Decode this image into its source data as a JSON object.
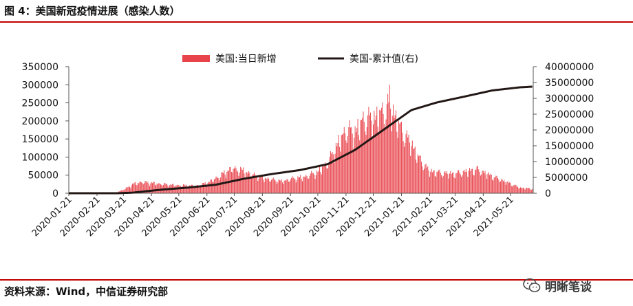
{
  "header": {
    "title": "图 4：美国新冠疫情进展（感染人数）"
  },
  "footer": {
    "source": "资料来源：Wind，中信证券研究部",
    "watermark": "明晰笔谈"
  },
  "colors": {
    "rule": "#c00000",
    "bar": "#e8434b",
    "line": "#231815"
  },
  "chart_data": {
    "type": "bar+line",
    "title": "",
    "legend_position": "top",
    "series": [
      {
        "name": "美国:当日新增",
        "type": "bar",
        "axis": "left"
      },
      {
        "name": "美国-累计值(右)",
        "type": "line",
        "axis": "right"
      }
    ],
    "x_ticks": [
      "2020-01-21",
      "2020-02-21",
      "2020-03-21",
      "2020-04-21",
      "2020-05-21",
      "2020-06-21",
      "2020-07-21",
      "2020-08-21",
      "2020-09-21",
      "2020-10-21",
      "2020-11-21",
      "2020-12-21",
      "2021-01-21",
      "2021-02-21",
      "2021-03-21",
      "2021-04-21",
      "2021-05-21"
    ],
    "x_range": [
      "2020-01-21",
      "2021-06-15"
    ],
    "y_left": {
      "min": 0,
      "max": 350000,
      "ticks": [
        "0",
        "50000",
        "100000",
        "150000",
        "200000",
        "250000",
        "300000",
        "350000"
      ]
    },
    "y_right": {
      "min": 0,
      "max": 40000000,
      "ticks": [
        "0",
        "5000000",
        "10000000",
        "15000000",
        "20000000",
        "25000000",
        "30000000",
        "35000000",
        "40000000"
      ]
    },
    "daily_new_keypoints": [
      [
        "2020-01-21",
        0
      ],
      [
        "2020-03-01",
        0
      ],
      [
        "2020-03-12",
        1500
      ],
      [
        "2020-03-21",
        10000
      ],
      [
        "2020-04-01",
        27000
      ],
      [
        "2020-04-10",
        33000
      ],
      [
        "2020-04-21",
        30000
      ],
      [
        "2020-05-10",
        25000
      ],
      [
        "2020-05-21",
        23000
      ],
      [
        "2020-06-10",
        22000
      ],
      [
        "2020-06-21",
        30000
      ],
      [
        "2020-07-05",
        50000
      ],
      [
        "2020-07-18",
        73000
      ],
      [
        "2020-07-28",
        68000
      ],
      [
        "2020-08-10",
        55000
      ],
      [
        "2020-08-21",
        45000
      ],
      [
        "2020-09-05",
        38000
      ],
      [
        "2020-09-12",
        35000
      ],
      [
        "2020-09-21",
        42000
      ],
      [
        "2020-10-05",
        47000
      ],
      [
        "2020-10-21",
        62000
      ],
      [
        "2020-11-01",
        90000
      ],
      [
        "2020-11-10",
        135000
      ],
      [
        "2020-11-21",
        185000
      ],
      [
        "2020-12-01",
        180000
      ],
      [
        "2020-12-10",
        215000
      ],
      [
        "2020-12-21",
        220000
      ],
      [
        "2021-01-02",
        240000
      ],
      [
        "2021-01-08",
        260000
      ],
      [
        "2021-01-15",
        220000
      ],
      [
        "2021-01-21",
        185000
      ],
      [
        "2021-02-01",
        145000
      ],
      [
        "2021-02-10",
        100000
      ],
      [
        "2021-02-21",
        65000
      ],
      [
        "2021-03-05",
        60000
      ],
      [
        "2021-03-21",
        57000
      ],
      [
        "2021-04-01",
        64000
      ],
      [
        "2021-04-15",
        70000
      ],
      [
        "2021-04-21",
        62000
      ],
      [
        "2021-05-01",
        50000
      ],
      [
        "2021-05-12",
        38000
      ],
      [
        "2021-05-21",
        28000
      ],
      [
        "2021-06-01",
        16000
      ],
      [
        "2021-06-15",
        13000
      ]
    ],
    "cumulative_keypoints": [
      [
        "2020-01-21",
        0
      ],
      [
        "2020-03-15",
        5000
      ],
      [
        "2020-04-01",
        200000
      ],
      [
        "2020-05-01",
        1100000
      ],
      [
        "2020-06-01",
        1800000
      ],
      [
        "2020-07-01",
        2700000
      ],
      [
        "2020-08-01",
        4600000
      ],
      [
        "2020-09-01",
        6100000
      ],
      [
        "2020-10-01",
        7300000
      ],
      [
        "2020-11-01",
        9200000
      ],
      [
        "2020-12-01",
        13700000
      ],
      [
        "2021-01-01",
        20000000
      ],
      [
        "2021-02-01",
        26300000
      ],
      [
        "2021-03-01",
        28700000
      ],
      [
        "2021-04-01",
        30600000
      ],
      [
        "2021-05-01",
        32500000
      ],
      [
        "2021-06-01",
        33500000
      ],
      [
        "2021-06-15",
        33700000
      ]
    ],
    "daily_peak": [
      "2021-01-08",
      300000
    ]
  }
}
